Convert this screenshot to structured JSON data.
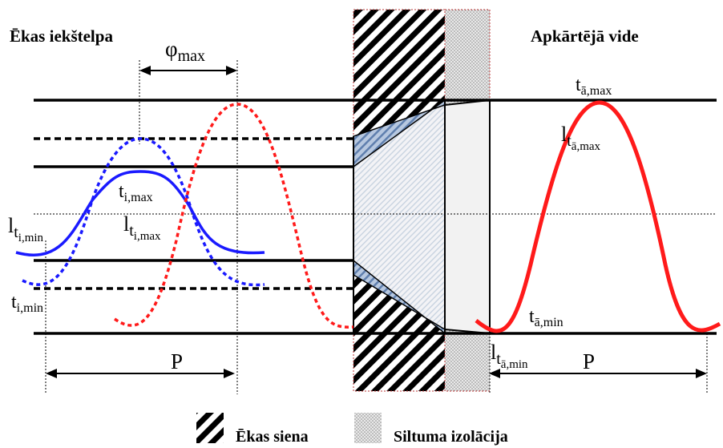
{
  "headings": {
    "inside": "Ēkas iekštelpa",
    "outside": "Apkārtējā vide"
  },
  "labels": {
    "phi": "φ",
    "phi_sub": "max",
    "t_base": "t",
    "l_base": "l",
    "ti_max_sub": "i,max",
    "ti_min_sub": "i,min",
    "ta_max_sub": "ā,max",
    "ta_min_sub": "ā,min",
    "l_ti_min_sub": "t",
    "l_ti_min_subsub": "i,min",
    "l_ti_max_sub": "t",
    "l_ti_max_subsub": "i,max",
    "l_ta_max_sub": "t",
    "l_ta_max_subsub": "ā,max",
    "l_ta_min_sub": "t",
    "l_ta_min_subsub": "ā,min",
    "period_left": "P",
    "period_right": "P"
  },
  "legend": {
    "wall": "Ēkas siena",
    "insulation": "Siltuma izolācija"
  },
  "colors": {
    "blue": "#1a1aff",
    "red": "#ff1a1a",
    "shade": "#9db5d6"
  }
}
